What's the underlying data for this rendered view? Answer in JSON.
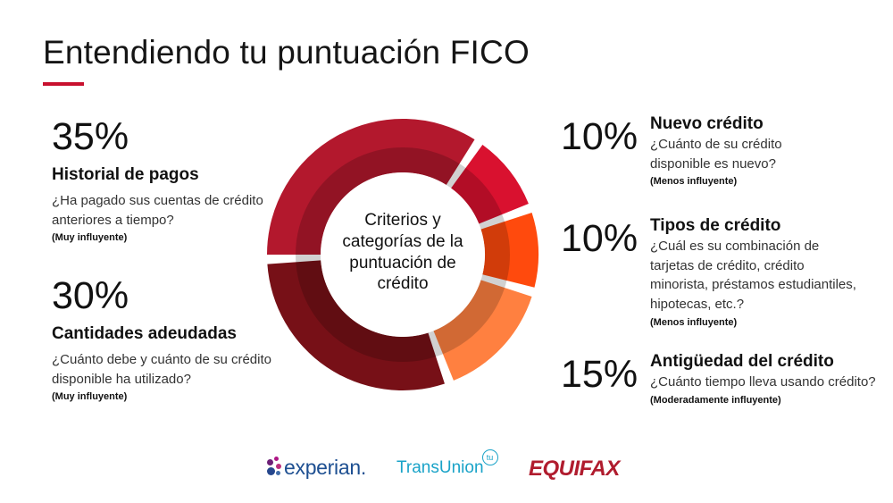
{
  "header": {
    "title": "Entendiendo tu puntuación FICO"
  },
  "chart_data": {
    "type": "pie",
    "center_label": "Criterios y categorías de la puntuación de crédito",
    "categories": [
      "Historial de pagos",
      "Nuevo crédito",
      "Tipos de crédito",
      "Antigüedad del crédito",
      "Cantidades adeudadas"
    ],
    "values": [
      35,
      10,
      10,
      15,
      30
    ],
    "colors": [
      "#b3182d",
      "#d9112f",
      "#ff4a0d",
      "#ff8040",
      "#771017"
    ]
  },
  "left": [
    {
      "pct": "35%",
      "name": "Historial de pagos",
      "desc": "¿Ha pagado sus cuentas de crédito anteriores a tiempo?",
      "note": "(Muy influyente)"
    },
    {
      "pct": "30%",
      "name": "Cantidades adeudadas",
      "desc": "¿Cuánto debe y cuánto de su crédito disponible ha utilizado?",
      "note": "(Muy influyente)"
    }
  ],
  "right": [
    {
      "pct": "10%",
      "name": "Nuevo crédito",
      "desc": "¿Cuánto de su crédito disponible es nuevo?",
      "note": "(Menos influyente)"
    },
    {
      "pct": "10%",
      "name": "Tipos de crédito",
      "desc": "¿Cuál es su combinación de tarjetas de crédito, crédito minorista, préstamos estudiantiles, hipotecas, etc.?",
      "note": "(Menos influyente)"
    },
    {
      "pct": "15%",
      "name": "Antigüedad del crédito",
      "desc": "¿Cuánto tiempo lleva usando crédito?",
      "note": "(Moderadamente influyente)"
    }
  ],
  "logos": {
    "experian": "experian.",
    "transunion": "TransUnion",
    "transunion_badge": "tu",
    "equifax": "EQUIFAX"
  }
}
